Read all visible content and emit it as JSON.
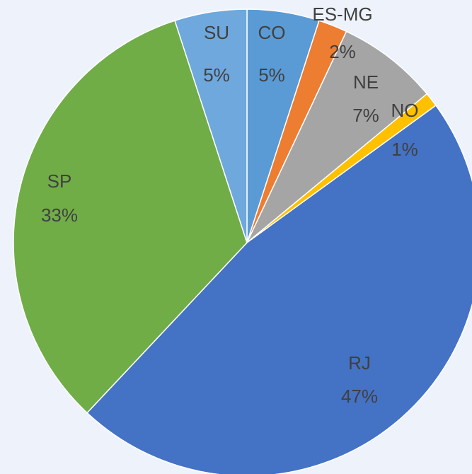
{
  "chart_data": {
    "type": "pie",
    "categories": [
      "CO",
      "ES-MG",
      "NE",
      "NO",
      "RJ",
      "SP",
      "SU"
    ],
    "values": [
      5,
      2,
      7,
      1,
      47,
      33,
      5
    ],
    "value_labels": [
      "5%",
      "2%",
      "7%",
      "1%",
      "47%",
      "33%",
      "5%"
    ],
    "colors": [
      "#5b9bd5",
      "#ed7d31",
      "#a5a5a5",
      "#ffc000",
      "#4472c4",
      "#70ad47",
      "#6fa8dc"
    ]
  }
}
